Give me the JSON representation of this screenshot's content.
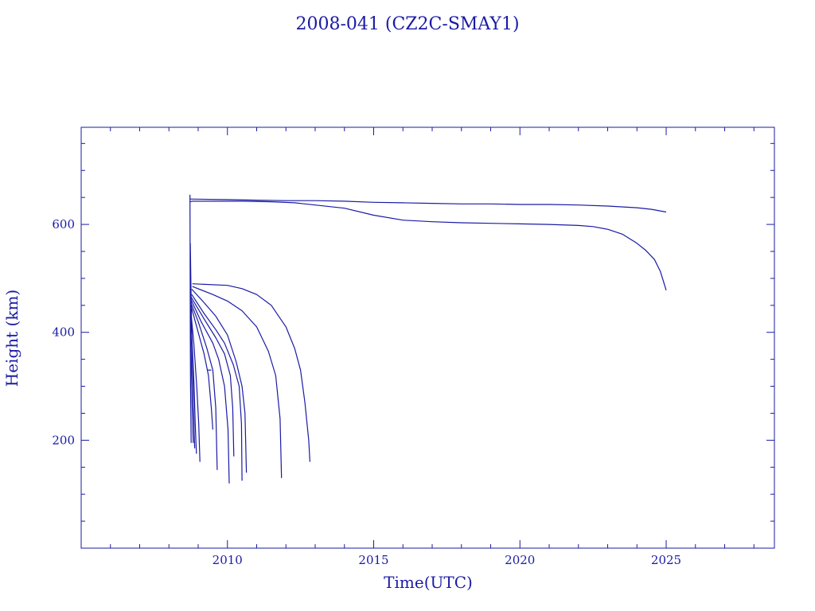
{
  "chart_data": {
    "type": "line",
    "title": "2008-041 (CZ2C-SMAY1)",
    "xlabel": "Time(UTC)",
    "ylabel": "Height (km)",
    "xlim": [
      2005.0,
      2028.7
    ],
    "ylim": [
      0,
      780
    ],
    "x_ticks": [
      2010,
      2015,
      2020,
      2025
    ],
    "y_ticks": [
      200,
      400,
      600
    ],
    "x_minor_step": 1,
    "y_minor_step": 50,
    "grid": false,
    "legend": "none",
    "color": "#1a1aa6",
    "series": [
      {
        "x": [
          2008.72,
          2008.8,
          2009.5,
          2010.5,
          2011.5,
          2012.3,
          2013.0,
          2014.0,
          2015.0,
          2016.0,
          2017.0,
          2018.0,
          2019.0,
          2020.0,
          2021.0,
          2022.0,
          2022.5,
          2023.0,
          2023.5,
          2024.0,
          2024.3,
          2024.6,
          2024.8,
          2025.0
        ],
        "y": [
          642,
          643,
          643,
          643,
          642,
          640,
          636,
          630,
          617,
          608,
          605,
          603,
          602,
          601,
          600,
          598,
          596,
          591,
          582,
          565,
          552,
          535,
          513,
          478
        ]
      },
      {
        "x": [
          2008.72,
          2010.0,
          2011.0,
          2012.0,
          2013.0,
          2014.0,
          2015.0,
          2016.0,
          2017.0,
          2018.0,
          2019.0,
          2020.0,
          2021.0,
          2022.0,
          2023.0,
          2024.0,
          2024.5,
          2025.0
        ],
        "y": [
          647,
          646,
          645,
          644,
          644,
          643,
          641,
          640,
          639,
          638,
          638,
          637,
          637,
          636,
          634,
          631,
          628,
          623
        ]
      },
      {
        "x": [
          2008.72,
          2008.73,
          2008.74,
          2008.76
        ],
        "y": [
          655,
          400,
          300,
          195
        ]
      },
      {
        "x": [
          2008.8,
          2010.0,
          2010.5,
          2011.0,
          2011.5,
          2012.0,
          2012.3,
          2012.5,
          2012.65,
          2012.78,
          2012.82
        ],
        "y": [
          490,
          487,
          481,
          470,
          450,
          410,
          370,
          330,
          270,
          200,
          160
        ]
      },
      {
        "x": [
          2008.8,
          2009.5,
          2010.0,
          2010.5,
          2011.0,
          2011.4,
          2011.65,
          2011.8,
          2011.85
        ],
        "y": [
          485,
          470,
          458,
          440,
          410,
          365,
          320,
          240,
          130
        ]
      },
      {
        "x": [
          2008.78,
          2009.2,
          2009.6,
          2010.0,
          2010.3,
          2010.5,
          2010.6,
          2010.65
        ],
        "y": [
          480,
          455,
          430,
          395,
          345,
          300,
          250,
          140
        ]
      },
      {
        "x": [
          2008.78,
          2009.2,
          2009.6,
          2009.9,
          2010.2,
          2010.4,
          2010.48,
          2010.5
        ],
        "y": [
          470,
          435,
          405,
          380,
          340,
          300,
          230,
          125
        ]
      },
      {
        "x": [
          2008.76,
          2009.2,
          2009.6,
          2009.9,
          2010.1,
          2010.18,
          2010.22
        ],
        "y": [
          465,
          425,
          390,
          360,
          320,
          260,
          170
        ]
      },
      {
        "x": [
          2008.76,
          2009.1,
          2009.5,
          2009.7,
          2009.9,
          2010.02,
          2010.06
        ],
        "y": [
          460,
          420,
          380,
          350,
          300,
          220,
          120
        ]
      },
      {
        "x": [
          2008.75,
          2009.0,
          2009.3,
          2009.5,
          2009.6,
          2009.65
        ],
        "y": [
          455,
          420,
          370,
          330,
          260,
          145
        ]
      },
      {
        "x": [
          2008.75,
          2009.0,
          2009.2,
          2009.35,
          2009.45,
          2009.5
        ],
        "y": [
          450,
          400,
          360,
          320,
          260,
          220
        ]
      },
      {
        "x": [
          2008.74,
          2008.85,
          2008.95,
          2009.02,
          2009.06
        ],
        "y": [
          445,
          380,
          300,
          230,
          160
        ]
      },
      {
        "x": [
          2008.74,
          2008.8,
          2008.86,
          2008.9,
          2008.94
        ],
        "y": [
          440,
          370,
          300,
          230,
          175
        ]
      },
      {
        "x": [
          2008.73,
          2008.77,
          2008.8,
          2008.83,
          2008.86,
          2008.88
        ],
        "y": [
          565,
          420,
          350,
          280,
          220,
          185
        ]
      },
      {
        "x": [
          2008.73,
          2008.76,
          2008.78,
          2008.8,
          2008.83
        ],
        "y": [
          430,
          360,
          300,
          250,
          195
        ]
      },
      {
        "x": [
          2009.3,
          2009.45
        ],
        "y": [
          330,
          330
        ]
      }
    ]
  }
}
